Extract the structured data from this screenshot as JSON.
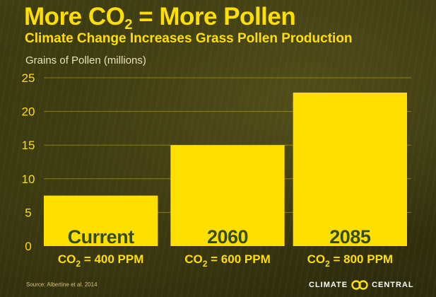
{
  "header": {
    "title_main": "More CO",
    "title_sub": "2",
    "title_rest": " = More Pollen",
    "subtitle": "Climate Change Increases Grass Pollen Production"
  },
  "footer": {
    "source": "Source: Albertine et al. 2014",
    "brand_left": "CLIMATE",
    "brand_right": "CENTRAL",
    "brand_icon": "climate-central-logo-icon"
  },
  "colors": {
    "bar": "#ffdf00",
    "text_accent": "#ffde00",
    "bar_label": "#344d14",
    "background": "#3a3a10"
  },
  "chart_data": {
    "type": "bar",
    "ylabel": "Grains of Pollen (millions)",
    "xlabel": "",
    "ylim": [
      0,
      25
    ],
    "yticks": [
      0,
      5,
      10,
      15,
      20,
      25
    ],
    "grid": true,
    "categories": [
      "Current",
      "2060",
      "2085"
    ],
    "values": [
      7.5,
      15,
      22.8
    ],
    "co2_levels": [
      {
        "prefix": "CO",
        "sub": "2",
        "suffix": " = 400 PPM"
      },
      {
        "prefix": "CO",
        "sub": "2",
        "suffix": " = 600 PPM"
      },
      {
        "prefix": "CO",
        "sub": "2",
        "suffix": " = 800 PPM"
      }
    ]
  }
}
